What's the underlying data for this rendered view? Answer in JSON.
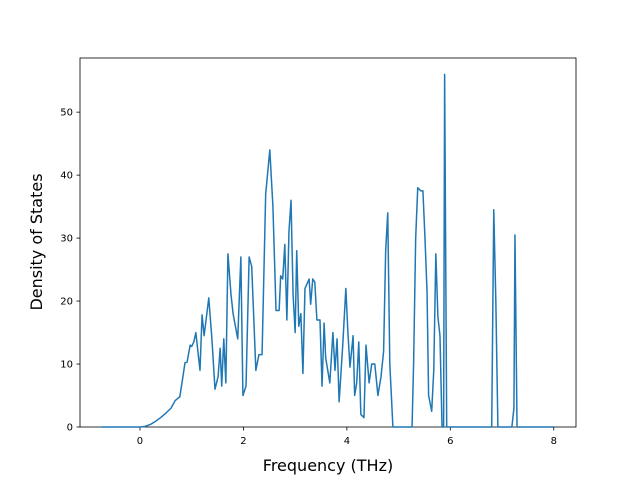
{
  "chart_data": {
    "type": "line",
    "x_label": "Frequency (THz)",
    "y_label": "Density of States",
    "series": [
      {
        "color": "#1f77b4",
        "x": [
          -0.75,
          0,
          0.1,
          0.2,
          0.3,
          0.4,
          0.5,
          0.6,
          0.68,
          0.77,
          0.83,
          0.87,
          0.91,
          0.97,
          1.0,
          1.04,
          1.08,
          1.16,
          1.2,
          1.24,
          1.33,
          1.39,
          1.45,
          1.51,
          1.55,
          1.58,
          1.62,
          1.66,
          1.7,
          1.76,
          1.8,
          1.89,
          1.95,
          1.99,
          2.05,
          2.11,
          2.16,
          2.24,
          2.3,
          2.36,
          2.43,
          2.51,
          2.57,
          2.63,
          2.69,
          2.72,
          2.76,
          2.8,
          2.84,
          2.88,
          2.92,
          2.96,
          3.0,
          3.03,
          3.07,
          3.11,
          3.15,
          3.19,
          3.27,
          3.3,
          3.34,
          3.38,
          3.42,
          3.48,
          3.52,
          3.56,
          3.59,
          3.67,
          3.73,
          3.77,
          3.81,
          3.85,
          3.92,
          3.98,
          4.02,
          4.06,
          4.12,
          4.15,
          4.19,
          4.23,
          4.27,
          4.33,
          4.37,
          4.43,
          4.48,
          4.54,
          4.6,
          4.66,
          4.71,
          4.75,
          4.79,
          4.83,
          4.89,
          5.26,
          5.29,
          5.33,
          5.37,
          5.43,
          5.47,
          5.51,
          5.55,
          5.58,
          5.64,
          5.68,
          5.72,
          5.76,
          5.8,
          5.84,
          5.87,
          5.89,
          5.93,
          6.8,
          6.84,
          6.88,
          6.92,
          7.19,
          7.23,
          7.25,
          7.29,
          8
        ],
        "values": [
          0,
          0,
          0.1,
          0.4,
          0.9,
          1.5,
          2.2,
          3.0,
          4.2,
          4.8,
          8,
          10.2,
          10.3,
          13,
          12.8,
          13.5,
          15,
          9,
          17.8,
          14.5,
          20.5,
          14,
          6,
          8,
          12.5,
          6.5,
          14,
          7,
          27.5,
          21,
          18,
          14,
          27,
          5,
          6.5,
          27,
          25.5,
          9,
          11.5,
          11.5,
          37,
          44,
          35,
          18.5,
          18.5,
          24,
          23.5,
          29,
          17,
          31,
          36,
          21,
          15,
          28,
          16,
          18,
          8.5,
          22,
          23.5,
          19.5,
          23.5,
          23,
          17,
          17,
          6.5,
          16.5,
          11,
          7,
          15,
          9,
          14,
          4,
          13,
          22,
          15,
          9.5,
          14.5,
          5,
          7,
          13.5,
          2,
          1.5,
          13,
          7,
          10,
          10,
          5,
          8,
          12,
          28,
          34,
          10,
          0,
          0,
          10,
          30,
          38,
          37.5,
          37.5,
          30,
          21.5,
          5,
          2.5,
          9,
          27.5,
          17.5,
          14.5,
          0,
          0,
          56,
          0,
          0,
          34.5,
          20,
          0,
          0,
          3,
          30.5,
          0,
          0
        ]
      }
    ],
    "xlim": [
      -1.16,
      8.43
    ],
    "xticks": [
      0,
      2,
      4,
      6,
      8
    ],
    "ylim": [
      0,
      58.6
    ],
    "yticks": [
      0,
      10,
      20,
      30,
      40,
      50
    ]
  }
}
